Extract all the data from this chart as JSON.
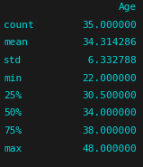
{
  "rows": [
    {
      "label": "count",
      "value": "35.000000"
    },
    {
      "label": "mean",
      "value": "34.314286"
    },
    {
      "label": "std",
      "value": " 6.332788"
    },
    {
      "label": "min",
      "value": "22.000000"
    },
    {
      "label": "25%",
      "value": "30.500000"
    },
    {
      "label": "50%",
      "value": "34.000000"
    },
    {
      "label": "75%",
      "value": "38.000000"
    },
    {
      "label": "max",
      "value": "48.000000"
    }
  ],
  "bg_color": "#1a1a1a",
  "text_color": "#00d8d8",
  "font_size": 8.0,
  "col_header": "Age"
}
